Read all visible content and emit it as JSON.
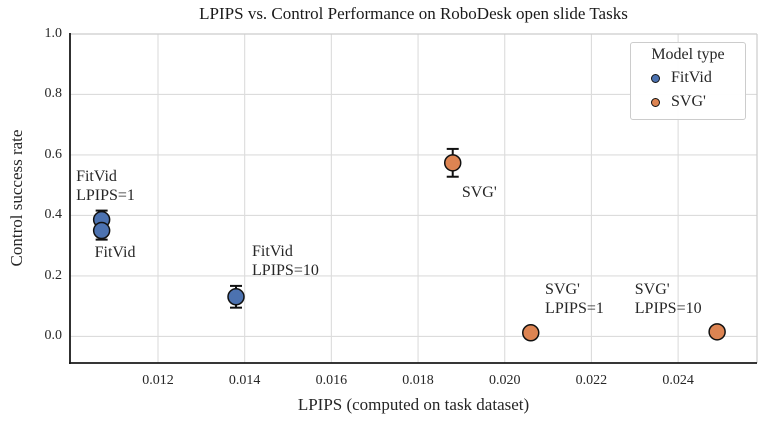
{
  "chart_data": {
    "type": "scatter",
    "title": "LPIPS vs. Control Performance on RoboDesk open slide Tasks",
    "xlabel": "LPIPS (computed on task dataset)",
    "ylabel": "Control success rate",
    "xlim": [
      0.00997,
      0.02582
    ],
    "ylim": [
      -0.088,
      1.0
    ],
    "grid": true,
    "x_ticks": {
      "values": [
        0.012,
        0.014,
        0.016,
        0.018,
        0.02,
        0.022,
        0.024
      ],
      "labels": [
        "0.012",
        "0.014",
        "0.016",
        "0.018",
        "0.020",
        "0.022",
        "0.024"
      ]
    },
    "y_ticks": {
      "values": [
        0.0,
        0.2,
        0.4,
        0.6,
        0.8,
        1.0
      ],
      "labels": [
        "0.0",
        "0.2",
        "0.4",
        "0.6",
        "0.8",
        "1.0"
      ]
    },
    "colors": {
      "blue": "#4C72B0",
      "orange": "#DD8452",
      "grid": "#dcdcdc",
      "spine_dark": "#1a1a1a",
      "spine_light": "#cccccc",
      "marker_edge": "#111111",
      "text": "#262626"
    },
    "legend": {
      "title": "Model type",
      "position": "upper right",
      "entries": [
        {
          "label": "FitVid",
          "color": "#4C72B0"
        },
        {
          "label": "SVG'",
          "color": "#DD8452"
        }
      ]
    },
    "series": [
      {
        "name": "FitVid",
        "color": "#4C72B0",
        "points": [
          {
            "label": "FitVid LPIPS=1",
            "x": 0.0107,
            "y": 0.386,
            "yerr": 0.03
          },
          {
            "label": "FitVid",
            "x": 0.0107,
            "y": 0.35,
            "yerr": 0.03
          },
          {
            "label": "FitVid LPIPS=10",
            "x": 0.0138,
            "y": 0.131,
            "yerr": 0.036
          }
        ]
      },
      {
        "name": "SVG'",
        "color": "#DD8452",
        "points": [
          {
            "label": "SVG'",
            "x": 0.0188,
            "y": 0.574,
            "yerr": 0.046
          },
          {
            "label": "SVG' LPIPS=1",
            "x": 0.0206,
            "y": 0.012,
            "yerr": 0.012
          },
          {
            "label": "SVG' LPIPS=10",
            "x": 0.0249,
            "y": 0.015,
            "yerr": 0.012
          }
        ]
      }
    ],
    "annotations": [
      {
        "lines": [
          "FitVid",
          "LPIPS=1"
        ],
        "x": 0.01011,
        "y_top": 0.56,
        "align": "left"
      },
      {
        "lines": [
          "FitVid"
        ],
        "x": 0.01101,
        "y_top": 0.309,
        "align": "center"
      },
      {
        "lines": [
          "FitVid",
          "LPIPS=10"
        ],
        "x": 0.01417,
        "y_top": 0.312,
        "align": "left"
      },
      {
        "lines": [
          "SVG'"
        ],
        "x": 0.01901,
        "y_top": 0.507,
        "align": "left"
      },
      {
        "lines": [
          "SVG'",
          "LPIPS=1"
        ],
        "x": 0.02093,
        "y_top": 0.187,
        "align": "left"
      },
      {
        "lines": [
          "SVG'",
          "LPIPS=10"
        ],
        "x": 0.023,
        "y_top": 0.187,
        "align": "left"
      }
    ]
  }
}
